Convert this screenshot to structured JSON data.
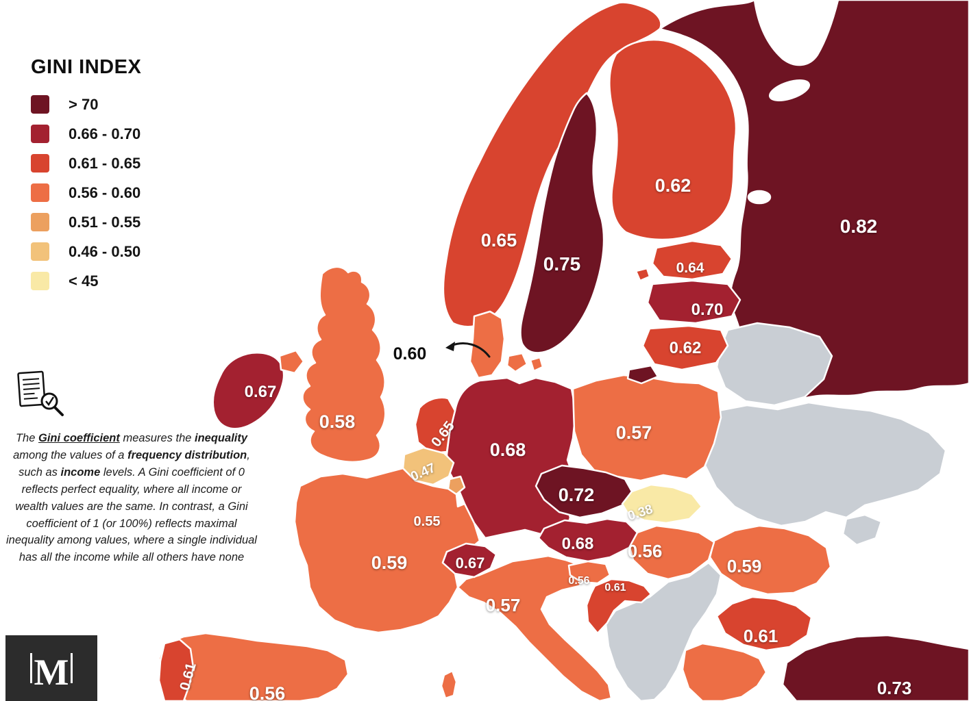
{
  "title": "GINI INDEX",
  "legend": {
    "items": [
      {
        "label": "> 70",
        "color": "#6E1423"
      },
      {
        "label": "0.66 - 0.70",
        "color": "#A32130"
      },
      {
        "label": "0.61 - 0.65",
        "color": "#D8442F"
      },
      {
        "label": "0.56 - 0.60",
        "color": "#ED6E45"
      },
      {
        "label": "0.51 - 0.55",
        "color": "#ECA05F"
      },
      {
        "label": "0.46 - 0.50",
        "color": "#F2C27A"
      },
      {
        "label": "< 45",
        "color": "#F9E9A6"
      }
    ],
    "no_data_color": "#C9CED4"
  },
  "description": {
    "segments": [
      {
        "text": "The ",
        "style": "normal"
      },
      {
        "text": "Gini coefficient",
        "style": "bold-underline"
      },
      {
        "text": " measures the ",
        "style": "normal"
      },
      {
        "text": "inequality",
        "style": "bold"
      },
      {
        "text": " among the values of a ",
        "style": "normal"
      },
      {
        "text": "frequency distribution",
        "style": "bold"
      },
      {
        "text": ", such as ",
        "style": "normal"
      },
      {
        "text": "income",
        "style": "bold"
      },
      {
        "text": " levels. A Gini coefficient of 0 reflects perfect equality, where all income or wealth values are the same. In contrast, a Gini coefficient of 1 (or 100%) reflects maximal inequality among values, where a single individual has all the income while all others have none",
        "style": "normal"
      }
    ]
  },
  "logo": {
    "letter": "M"
  },
  "chart_data": {
    "type": "choropleth",
    "title": "GINI INDEX",
    "region": "Europe",
    "countries": [
      {
        "name": "Russia",
        "value": "0.82"
      },
      {
        "name": "Sweden",
        "value": "0.75"
      },
      {
        "name": "Turkey",
        "value": "0.73"
      },
      {
        "name": "Czechia",
        "value": "0.72"
      },
      {
        "name": "Latvia",
        "value": "0.70"
      },
      {
        "name": "Germany",
        "value": "0.68"
      },
      {
        "name": "Austria",
        "value": "0.68"
      },
      {
        "name": "Ireland",
        "value": "0.67"
      },
      {
        "name": "Switzerland",
        "value": "0.67"
      },
      {
        "name": "Norway",
        "value": "0.65"
      },
      {
        "name": "Netherlands",
        "value": "0.65"
      },
      {
        "name": "Estonia",
        "value": "0.64"
      },
      {
        "name": "Finland",
        "value": "0.62"
      },
      {
        "name": "Lithuania",
        "value": "0.62"
      },
      {
        "name": "Croatia",
        "value": "0.61"
      },
      {
        "name": "Bulgaria",
        "value": "0.61"
      },
      {
        "name": "Portugal",
        "value": "0.61"
      },
      {
        "name": "Denmark",
        "value": "0.60"
      },
      {
        "name": "France",
        "value": "0.59"
      },
      {
        "name": "Romania",
        "value": "0.59"
      },
      {
        "name": "United Kingdom",
        "value": "0.58"
      },
      {
        "name": "Poland",
        "value": "0.57"
      },
      {
        "name": "Italy",
        "value": "0.57"
      },
      {
        "name": "Hungary",
        "value": "0.56"
      },
      {
        "name": "Slovenia",
        "value": "0.56"
      },
      {
        "name": "Spain",
        "value": "0.56"
      },
      {
        "name": "Luxembourg",
        "value": "0.55"
      },
      {
        "name": "Belgium",
        "value": "0.47"
      },
      {
        "name": "Slovakia",
        "value": "0.38"
      }
    ],
    "no_data": "Gray countries shown without values (Belarus, Ukraine, Moldova, western Balkans)"
  }
}
